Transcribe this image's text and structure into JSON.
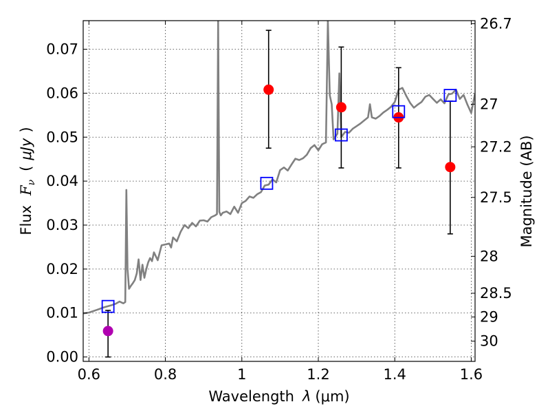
{
  "chart_data": {
    "type": "scatter",
    "xlabel_text": "Wavelength",
    "xlabel_symbol": "λ",
    "xlabel_unit": "(μm)",
    "ylabel_text": "Flux",
    "ylabel_symbol": "F",
    "ylabel_subscript": "ν",
    "ylabel_unit_open": "(",
    "ylabel_unit_text": "μJy",
    "ylabel_unit_close": ")",
    "y2label": "Magnitude (AB)",
    "xlim": [
      0.585,
      1.61
    ],
    "ylim": [
      -0.001,
      0.0765
    ],
    "grid": true,
    "x_ticks": [
      {
        "value": 0.6,
        "label": "0.6"
      },
      {
        "value": 0.8,
        "label": "0.8"
      },
      {
        "value": 1.0,
        "label": "1"
      },
      {
        "value": 1.2,
        "label": "1.2"
      },
      {
        "value": 1.4,
        "label": "1.4"
      },
      {
        "value": 1.6,
        "label": "1.6"
      }
    ],
    "y_ticks": [
      {
        "value": 0.0,
        "label": "0.00"
      },
      {
        "value": 0.01,
        "label": "0.01"
      },
      {
        "value": 0.02,
        "label": "0.02"
      },
      {
        "value": 0.03,
        "label": "0.03"
      },
      {
        "value": 0.04,
        "label": "0.04"
      },
      {
        "value": 0.05,
        "label": "0.05"
      },
      {
        "value": 0.06,
        "label": "0.06"
      },
      {
        "value": 0.07,
        "label": "0.07"
      }
    ],
    "y2_ticks": [
      {
        "flux": 0.0758,
        "label": "26.7"
      },
      {
        "flux": 0.0575,
        "label": "27"
      },
      {
        "flux": 0.0478,
        "label": "27.2"
      },
      {
        "flux": 0.0363,
        "label": "27.5"
      },
      {
        "flux": 0.0229,
        "label": "28"
      },
      {
        "flux": 0.0145,
        "label": "28.5"
      },
      {
        "flux": 0.0091,
        "label": "29"
      },
      {
        "flux": 0.0036,
        "label": "30"
      }
    ],
    "model_spectrum": {
      "color": "#808080",
      "x": [
        0.585,
        0.6,
        0.62,
        0.63,
        0.64,
        0.66,
        0.67,
        0.68,
        0.69,
        0.695,
        0.698,
        0.701,
        0.705,
        0.71,
        0.715,
        0.72,
        0.725,
        0.73,
        0.735,
        0.74,
        0.745,
        0.75,
        0.755,
        0.76,
        0.765,
        0.77,
        0.78,
        0.79,
        0.8,
        0.81,
        0.815,
        0.82,
        0.83,
        0.84,
        0.85,
        0.86,
        0.87,
        0.88,
        0.89,
        0.9,
        0.91,
        0.92,
        0.93,
        0.935,
        0.938,
        0.941,
        0.945,
        0.95,
        0.96,
        0.97,
        0.98,
        0.99,
        1.0,
        1.01,
        1.02,
        1.03,
        1.04,
        1.05,
        1.06,
        1.07,
        1.08,
        1.09,
        1.1,
        1.11,
        1.12,
        1.13,
        1.14,
        1.15,
        1.16,
        1.17,
        1.18,
        1.19,
        1.2,
        1.21,
        1.22,
        1.225,
        1.23,
        1.235,
        1.24,
        1.25,
        1.255,
        1.26,
        1.27,
        1.28,
        1.29,
        1.3,
        1.31,
        1.32,
        1.33,
        1.335,
        1.34,
        1.35,
        1.36,
        1.37,
        1.38,
        1.39,
        1.4,
        1.41,
        1.42,
        1.43,
        1.44,
        1.45,
        1.46,
        1.47,
        1.48,
        1.49,
        1.5,
        1.51,
        1.52,
        1.53,
        1.54,
        1.55,
        1.56,
        1.57,
        1.58,
        1.59,
        1.6,
        1.61
      ],
      "y": [
        0.0099,
        0.0101,
        0.0107,
        0.011,
        0.0113,
        0.0118,
        0.0121,
        0.0126,
        0.0122,
        0.0125,
        0.038,
        0.02,
        0.0155,
        0.0162,
        0.0168,
        0.0175,
        0.019,
        0.0222,
        0.0175,
        0.021,
        0.018,
        0.02,
        0.0215,
        0.0225,
        0.0218,
        0.0238,
        0.022,
        0.0254,
        0.0256,
        0.0258,
        0.0249,
        0.0272,
        0.0263,
        0.0285,
        0.03,
        0.0293,
        0.0305,
        0.0297,
        0.031,
        0.0311,
        0.0308,
        0.0318,
        0.0322,
        0.0325,
        0.0765,
        0.033,
        0.0322,
        0.0328,
        0.0331,
        0.0325,
        0.0342,
        0.0328,
        0.035,
        0.0355,
        0.0365,
        0.0362,
        0.037,
        0.0375,
        0.039,
        0.0392,
        0.0404,
        0.0397,
        0.0425,
        0.0431,
        0.0424,
        0.0438,
        0.0451,
        0.0448,
        0.0452,
        0.046,
        0.0475,
        0.0482,
        0.047,
        0.0484,
        0.0488,
        0.0765,
        0.0595,
        0.0575,
        0.0495,
        0.0508,
        0.0645,
        0.05,
        0.0512,
        0.051,
        0.0519,
        0.0525,
        0.0531,
        0.0538,
        0.0545,
        0.0575,
        0.0545,
        0.0542,
        0.0548,
        0.0556,
        0.0562,
        0.0569,
        0.058,
        0.0608,
        0.0612,
        0.0594,
        0.0578,
        0.0567,
        0.0574,
        0.058,
        0.0592,
        0.0596,
        0.0587,
        0.0578,
        0.0586,
        0.0577,
        0.0597,
        0.0599,
        0.0608,
        0.0587,
        0.0596,
        0.0574,
        0.0555,
        0.06
      ]
    },
    "model_photometry": {
      "marker": "open-square",
      "color": "#0000ff",
      "x": [
        0.65,
        1.065,
        1.26,
        1.41,
        1.545
      ],
      "y": [
        0.0115,
        0.0395,
        0.0505,
        0.0558,
        0.0595
      ]
    },
    "observed": {
      "marker": "filled-circle",
      "x": [
        0.65,
        1.07,
        1.26,
        1.41,
        1.545
      ],
      "y": [
        0.0059,
        0.0608,
        0.0568,
        0.0545,
        0.0432
      ],
      "yerr_low": [
        0.0059,
        0.0133,
        0.0138,
        0.0115,
        0.0152
      ],
      "yerr_high": [
        0.0047,
        0.0135,
        0.0137,
        0.0113,
        0.015
      ],
      "colors": [
        "#b000b0",
        "#ff0000",
        "#ff0000",
        "#ff0000",
        "#ff0000"
      ]
    }
  }
}
